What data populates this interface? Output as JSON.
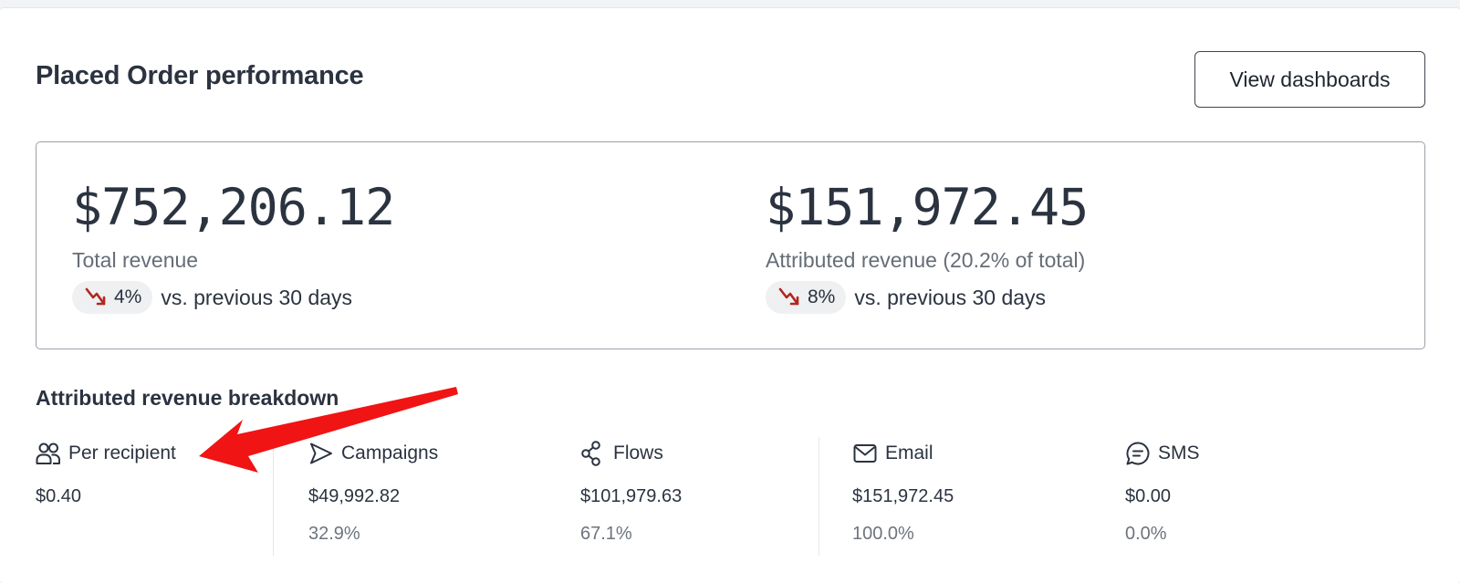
{
  "header": {
    "title": "Placed Order performance",
    "view_button": "View dashboards"
  },
  "summary": {
    "total": {
      "value": "$752,206.12",
      "label": "Total revenue",
      "change": "4%",
      "change_text": "vs. previous 30 days",
      "direction": "down"
    },
    "attributed": {
      "value": "$151,972.45",
      "label": "Attributed revenue (20.2% of total)",
      "change": "8%",
      "change_text": "vs. previous 30 days",
      "direction": "down"
    }
  },
  "breakdown": {
    "title": "Attributed revenue breakdown",
    "items": [
      {
        "label": "Per recipient",
        "icon": "users-icon",
        "value": "$0.40",
        "pct": ""
      },
      {
        "label": "Campaigns",
        "icon": "send-icon",
        "value": "$49,992.82",
        "pct": "32.9%"
      },
      {
        "label": "Flows",
        "icon": "flows-icon",
        "value": "$101,979.63",
        "pct": "67.1%"
      },
      {
        "label": "Email",
        "icon": "mail-icon",
        "value": "$151,972.45",
        "pct": "100.0%"
      },
      {
        "label": "SMS",
        "icon": "chat-icon",
        "value": "$0.00",
        "pct": "0.0%"
      }
    ]
  },
  "colors": {
    "text": "#2b3340",
    "muted": "#656d77",
    "trend_down": "#b3261e",
    "annotation_arrow": "#f01414"
  }
}
